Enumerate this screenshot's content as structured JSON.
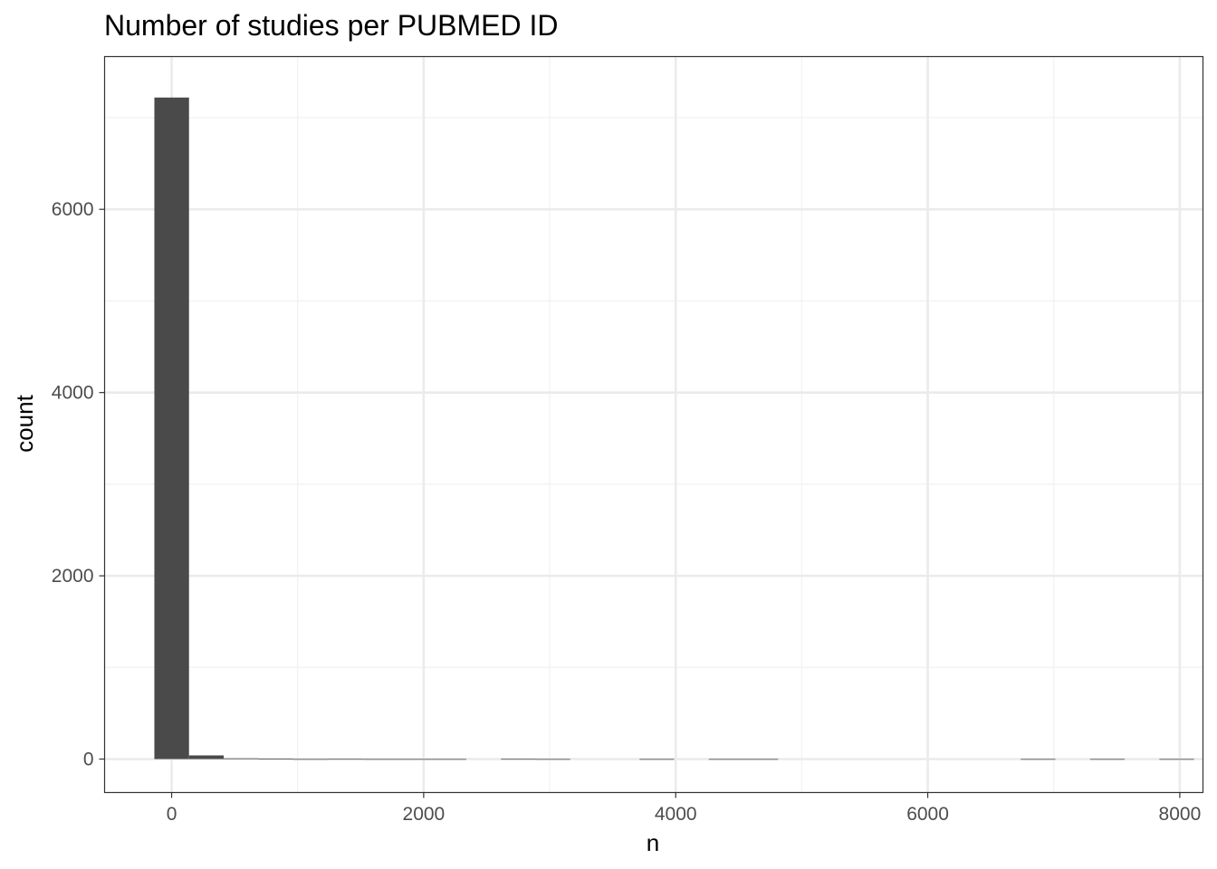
{
  "chart_data": {
    "type": "histogram",
    "title": "Number of studies per PUBMED ID",
    "xlabel": "n",
    "ylabel": "count",
    "xlim": [
      -532,
      8184
    ],
    "ylim": [
      -365,
      7667
    ],
    "x_ticks": [
      0,
      2000,
      4000,
      6000,
      8000
    ],
    "x_tick_labels": [
      "0",
      "2000",
      "4000",
      "6000",
      "8000"
    ],
    "y_ticks": [
      0,
      2000,
      4000,
      6000
    ],
    "y_tick_labels": [
      "0",
      "2000",
      "4000",
      "6000"
    ],
    "x_minor_ticks": [
      1000,
      3000,
      5000,
      7000
    ],
    "y_minor_ticks": [
      1000,
      3000,
      5000,
      7000
    ],
    "grid": true,
    "bin_width": 275,
    "bins": [
      {
        "x0": -137,
        "x1": 138,
        "count": 7220
      },
      {
        "x0": 138,
        "x1": 413,
        "count": 40
      },
      {
        "x0": 413,
        "x1": 688,
        "count": 8
      },
      {
        "x0": 688,
        "x1": 963,
        "count": 4
      },
      {
        "x0": 963,
        "x1": 1238,
        "count": 1
      },
      {
        "x0": 1238,
        "x1": 1513,
        "count": 2
      },
      {
        "x0": 1513,
        "x1": 1788,
        "count": 1
      },
      {
        "x0": 1788,
        "x1": 2063,
        "count": 1
      },
      {
        "x0": 2063,
        "x1": 2338,
        "count": 1
      },
      {
        "x0": 2613,
        "x1": 2888,
        "count": 2
      },
      {
        "x0": 2888,
        "x1": 3163,
        "count": 1
      },
      {
        "x0": 3713,
        "x1": 3988,
        "count": 1
      },
      {
        "x0": 4263,
        "x1": 4538,
        "count": 1
      },
      {
        "x0": 4538,
        "x1": 4813,
        "count": 1
      },
      {
        "x0": 6738,
        "x1": 7013,
        "count": 1
      },
      {
        "x0": 7288,
        "x1": 7563,
        "count": 1
      },
      {
        "x0": 7838,
        "x1": 8113,
        "count": 1
      }
    ],
    "colors": {
      "bar": "#4a4a4a",
      "panel_border": "#333333",
      "grid_major": "#ebebeb",
      "grid_minor": "#f2f2f2",
      "tick_label": "#4d4d4d"
    }
  }
}
